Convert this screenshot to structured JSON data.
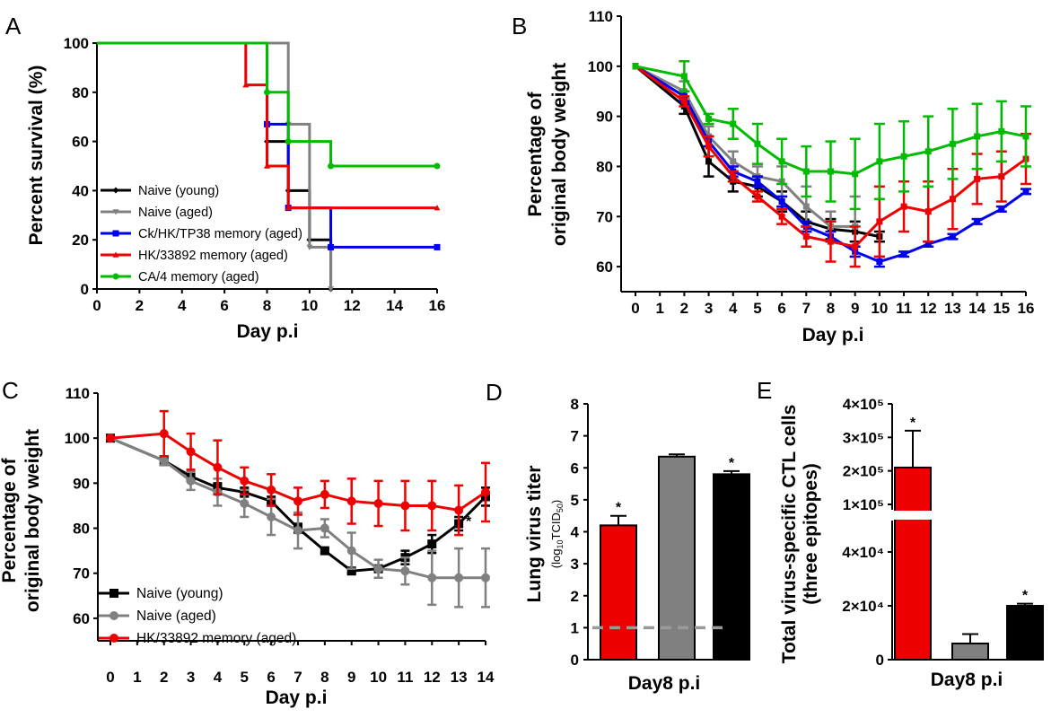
{
  "panels": [
    "A",
    "B",
    "C",
    "D",
    "E"
  ],
  "chart_data": [
    {
      "panel": "A",
      "type": "line",
      "step": true,
      "xlabel": "Day p.i",
      "ylabel": "Percent survival (%)",
      "xlim": [
        0,
        16
      ],
      "ylim": [
        0,
        100
      ],
      "xticks": [
        "0",
        "2",
        "4",
        "6",
        "8",
        "10",
        "12",
        "14",
        "16"
      ],
      "yticks": [
        "0",
        "20",
        "40",
        "60",
        "80",
        "100"
      ],
      "legend_position": "bottom-left",
      "series": [
        {
          "name": "Naive (young)",
          "color": "#000000",
          "marker": "diamond",
          "x": [
            0,
            8,
            9,
            10,
            11
          ],
          "y": [
            100,
            60,
            40,
            20,
            0
          ]
        },
        {
          "name": "Naive (aged)",
          "color": "#808080",
          "marker": "triangle-down",
          "x": [
            0,
            9,
            10,
            11
          ],
          "y": [
            100,
            67,
            17,
            0
          ]
        },
        {
          "name": "Ck/HK/TP38 memory (aged)",
          "color": "#0000ee",
          "marker": "square",
          "x": [
            0,
            8,
            9,
            11,
            16
          ],
          "y": [
            100,
            67,
            33,
            17,
            17
          ]
        },
        {
          "name": "HK/33892 memory (aged)",
          "color": "#ee0000",
          "marker": "triangle-up",
          "x": [
            0,
            7,
            8,
            9,
            16
          ],
          "y": [
            100,
            83,
            50,
            33,
            33
          ]
        },
        {
          "name": "CA/4 memory (aged)",
          "color": "#00bb00",
          "marker": "circle",
          "x": [
            0,
            8,
            9,
            11,
            16
          ],
          "y": [
            100,
            80,
            60,
            50,
            50
          ]
        }
      ]
    },
    {
      "panel": "B",
      "type": "line",
      "xlabel": "Day p.i",
      "ylabel": [
        "Percentage of",
        "original body weight"
      ],
      "xlim": [
        0,
        16
      ],
      "ylim": [
        55,
        110
      ],
      "xticks": [
        "0",
        "1",
        "2",
        "3",
        "4",
        "5",
        "6",
        "7",
        "8",
        "9",
        "10",
        "11",
        "12",
        "13",
        "14",
        "15",
        "16"
      ],
      "yticks": [
        "60",
        "70",
        "80",
        "90",
        "100",
        "110"
      ],
      "series": [
        {
          "name": "Naive (young)",
          "color": "#000000",
          "x": [
            0,
            2,
            3,
            4,
            5,
            6,
            7,
            8,
            9,
            10
          ],
          "y": [
            100,
            92,
            81,
            77,
            76,
            73,
            69,
            67.5,
            67,
            66
          ],
          "err": [
            0,
            1.5,
            3,
            2,
            2,
            2,
            2,
            2,
            2,
            1
          ]
        },
        {
          "name": "Naive (aged)",
          "color": "#808080",
          "x": [
            0,
            2,
            3,
            4,
            5,
            6,
            7,
            8,
            9
          ],
          "y": [
            100,
            95,
            86,
            81,
            78,
            77,
            72,
            68,
            68
          ],
          "err": [
            0,
            2,
            2,
            2,
            2,
            3,
            4,
            3,
            6
          ]
        },
        {
          "name": "Ck/HK/TP38 memory (aged)",
          "color": "#0000ee",
          "x": [
            0,
            2,
            3,
            4,
            5,
            6,
            7,
            8,
            9,
            10,
            11,
            12,
            13,
            14,
            15,
            16
          ],
          "y": [
            100,
            94,
            85,
            79,
            77,
            73,
            68,
            66,
            63,
            61,
            62.5,
            64.5,
            66,
            69,
            71.5,
            75
          ],
          "err": [
            0,
            1,
            1,
            1,
            1,
            1,
            1,
            1,
            1,
            1,
            0.5,
            0.5,
            0.5,
            0.5,
            0.5,
            0.5
          ]
        },
        {
          "name": "HK/33892 memory (aged)",
          "color": "#ee0000",
          "x": [
            0,
            2,
            3,
            4,
            5,
            6,
            7,
            8,
            9,
            10,
            11,
            12,
            13,
            14,
            15,
            16
          ],
          "y": [
            100,
            93,
            84,
            78,
            74,
            70,
            66,
            65,
            64,
            69,
            72,
            71,
            73.5,
            77.5,
            78,
            81.5
          ],
          "err": [
            0,
            1,
            2,
            1,
            1,
            1.5,
            2,
            4,
            4,
            7,
            5,
            6,
            6,
            5,
            5,
            5
          ]
        },
        {
          "name": "CA/4 memory (aged)",
          "color": "#00bb00",
          "x": [
            0,
            2,
            3,
            4,
            5,
            6,
            7,
            8,
            9,
            10,
            11,
            12,
            13,
            14,
            15,
            16
          ],
          "y": [
            100,
            98,
            89.5,
            88.5,
            84.5,
            81,
            79,
            79,
            78.5,
            81,
            82,
            83,
            84.5,
            86,
            87,
            86
          ],
          "err": [
            0,
            3,
            1,
            3,
            4,
            4.5,
            5,
            6,
            7,
            7.5,
            7,
            7,
            7,
            6.5,
            6,
            6
          ]
        }
      ]
    },
    {
      "panel": "C",
      "type": "line",
      "xlabel": "Day p.i",
      "ylabel": [
        "Percentage of",
        "original body weight"
      ],
      "xlim": [
        0,
        14
      ],
      "ylim": [
        55,
        110
      ],
      "xticks": [
        "0",
        "1",
        "2",
        "3",
        "4",
        "5",
        "6",
        "7",
        "8",
        "9",
        "10",
        "11",
        "12",
        "13",
        "14"
      ],
      "yticks": [
        "60",
        "70",
        "80",
        "90",
        "100",
        "110"
      ],
      "legend_position": "bottom-left",
      "annotations": [
        {
          "text": "*",
          "x": 13,
          "y": 81
        }
      ],
      "series": [
        {
          "name": "Naive (young)",
          "color": "#000000",
          "marker": "square",
          "x": [
            0,
            2,
            3,
            4,
            5,
            6,
            7,
            8,
            9,
            10,
            11,
            12,
            13,
            14
          ],
          "y": [
            100,
            95,
            91.5,
            89,
            88,
            86,
            80,
            75,
            70.5,
            71,
            73.5,
            76.5,
            81,
            87
          ],
          "err": [
            0,
            1,
            1,
            1,
            1,
            1,
            1,
            0.5,
            0.5,
            0.5,
            1.5,
            2,
            1.5,
            2
          ]
        },
        {
          "name": "Naive (aged)",
          "color": "#808080",
          "marker": "circle",
          "x": [
            0,
            2,
            3,
            4,
            5,
            6,
            7,
            8,
            9,
            10,
            11,
            12,
            13,
            14
          ],
          "y": [
            100,
            95,
            90.5,
            88,
            85.5,
            82.5,
            79.5,
            80,
            75,
            71,
            70.5,
            69,
            69,
            69
          ],
          "err": [
            0,
            1,
            2,
            3,
            3,
            4,
            4,
            2,
            4,
            2,
            3,
            6,
            6.5,
            6.5
          ]
        },
        {
          "name": "HK/33892 memory (aged)",
          "color": "#ee0000",
          "marker": "circle",
          "x": [
            0,
            2,
            3,
            4,
            5,
            6,
            7,
            8,
            9,
            10,
            11,
            12,
            13,
            14
          ],
          "y": [
            100,
            101,
            97,
            93.5,
            90.5,
            88.5,
            86,
            87.5,
            86,
            85.5,
            85,
            85,
            84,
            88
          ],
          "err": [
            0,
            5,
            4,
            6,
            3,
            3.5,
            3,
            3,
            5,
            5,
            5.5,
            5.5,
            5.5,
            6.5
          ]
        }
      ]
    },
    {
      "panel": "D",
      "type": "bar",
      "xlabel": "Day8 p.i",
      "ylabel": "Lung virus titer",
      "ylabel_unit": "(log10TCID50)",
      "ylim": [
        0,
        8
      ],
      "yticks": [
        "0",
        "1",
        "2",
        "3",
        "4",
        "5",
        "6",
        "7",
        "8"
      ],
      "reference_line": 1,
      "categories": [
        "HK/33892 memory (aged)",
        "Naive (aged)",
        "Naive (young)"
      ],
      "values": [
        4.2,
        6.35,
        5.8
      ],
      "err": [
        0.3,
        0.07,
        0.1
      ],
      "colors": [
        "#ee0000",
        "#808080",
        "#000000"
      ],
      "significance": [
        "*",
        "",
        "*"
      ]
    },
    {
      "panel": "E",
      "type": "bar",
      "xlabel": "Day8 p.i",
      "ylabel": [
        "Total virus-specific CTL cells",
        "(three epitopes)"
      ],
      "broken_axis": true,
      "yticks_lower": [
        "0",
        "2×10⁴",
        "4×10⁴"
      ],
      "yticks_upper": [
        "1×10⁵",
        "2×10⁵",
        "3×10⁵",
        "4×10⁵"
      ],
      "categories": [
        "HK/33892 memory (aged)",
        "Naive (aged)",
        "Naive (young)"
      ],
      "values": [
        210000,
        6000,
        20000
      ],
      "err": [
        110000,
        3500,
        800
      ],
      "colors": [
        "#ee0000",
        "#808080",
        "#000000"
      ],
      "significance": [
        "*",
        "",
        "*"
      ]
    }
  ]
}
